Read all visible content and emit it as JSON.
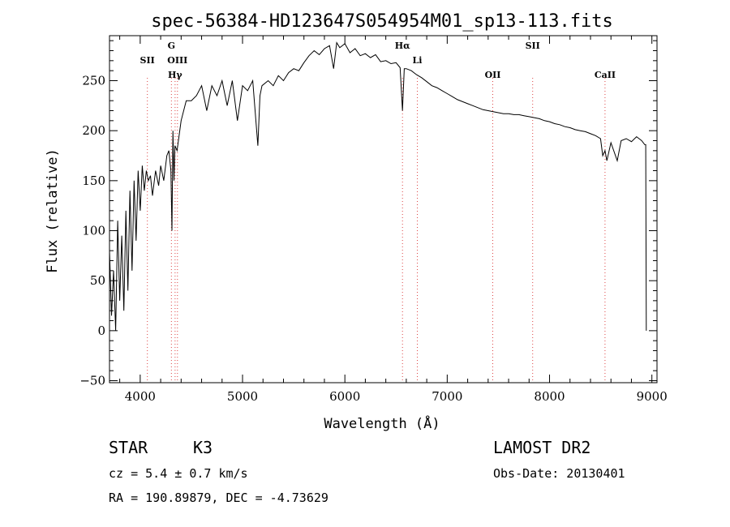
{
  "chart_data": {
    "type": "line",
    "title": "spec-56384-HD123647S054954M01_sp13-113.fits",
    "xlabel": "Wavelength (Å)",
    "ylabel": "Flux (relative)",
    "xlim": [
      3700,
      9050
    ],
    "ylim": [
      -52,
      295
    ],
    "grid": false,
    "xticks": [
      4000,
      5000,
      6000,
      7000,
      8000,
      9000
    ],
    "yticks": [
      -50,
      0,
      50,
      100,
      150,
      200,
      250
    ],
    "series": [
      {
        "x": [
          3700,
          3720,
          3740,
          3760,
          3780,
          3800,
          3820,
          3840,
          3860,
          3880,
          3900,
          3920,
          3940,
          3960,
          3980,
          4000,
          4020,
          4040,
          4060,
          4080,
          4100,
          4120,
          4150,
          4180,
          4200,
          4230,
          4260,
          4280,
          4300,
          4310,
          4320,
          4330,
          4340,
          4360,
          4380,
          4400,
          4450,
          4500,
          4550,
          4600,
          4650,
          4700,
          4750,
          4800,
          4850,
          4900,
          4950,
          5000,
          5050,
          5100,
          5150,
          5170,
          5190,
          5250,
          5300,
          5350,
          5400,
          5450,
          5500,
          5550,
          5600,
          5650,
          5700,
          5750,
          5800,
          5850,
          5890,
          5920,
          5950,
          6000,
          6050,
          6100,
          6150,
          6200,
          6250,
          6300,
          6350,
          6400,
          6450,
          6500,
          6540,
          6563,
          6580,
          6600,
          6650,
          6700,
          6750,
          6800,
          6850,
          6900,
          6950,
          7000,
          7050,
          7100,
          7150,
          7200,
          7250,
          7300,
          7350,
          7400,
          7450,
          7500,
          7550,
          7600,
          7650,
          7700,
          7750,
          7800,
          7850,
          7900,
          7950,
          8000,
          8050,
          8100,
          8150,
          8200,
          8250,
          8300,
          8350,
          8400,
          8450,
          8498,
          8520,
          8542,
          8560,
          8600,
          8662,
          8700,
          8750,
          8800,
          8850,
          8900,
          8930,
          8940,
          8945
        ],
        "y": [
          80,
          15,
          60,
          0,
          110,
          30,
          95,
          20,
          120,
          40,
          140,
          60,
          150,
          90,
          160,
          120,
          165,
          140,
          160,
          150,
          155,
          135,
          160,
          145,
          165,
          150,
          175,
          180,
          160,
          100,
          200,
          150,
          185,
          180,
          195,
          210,
          230,
          230,
          235,
          245,
          220,
          245,
          235,
          250,
          225,
          250,
          210,
          245,
          240,
          250,
          185,
          235,
          245,
          250,
          245,
          255,
          250,
          258,
          262,
          260,
          268,
          275,
          280,
          276,
          282,
          285,
          262,
          288,
          283,
          287,
          278,
          282,
          275,
          277,
          273,
          276,
          269,
          270,
          267,
          268,
          263,
          220,
          262,
          262,
          260,
          256,
          253,
          249,
          245,
          243,
          240,
          237,
          234,
          231,
          229,
          227,
          225,
          223,
          221,
          220,
          219,
          218,
          217,
          217,
          216,
          216,
          215,
          214,
          213,
          212,
          210,
          209,
          207,
          206,
          204,
          203,
          201,
          200,
          199,
          197,
          195,
          192,
          175,
          180,
          170,
          188,
          170,
          190,
          192,
          189,
          194,
          190,
          186,
          186,
          0
        ]
      }
    ],
    "spectral_lines": [
      {
        "name": "SII",
        "x": 4070
      },
      {
        "name": "G",
        "x": 4305
      },
      {
        "name": "OIII",
        "x": 4364
      },
      {
        "name": "Hγ",
        "x": 4341
      },
      {
        "name": "Hα",
        "x": 6563
      },
      {
        "name": "Li",
        "x": 6708
      },
      {
        "name": "OII",
        "x": 7445
      },
      {
        "name": "SII",
        "x": 7835
      },
      {
        "name": "CaII",
        "x": 8542
      }
    ]
  },
  "info": {
    "object_class": "STAR",
    "subclass": "K3",
    "survey": "LAMOST DR2",
    "redshift": "cz = 5.4 ± 0.7 km/s",
    "obs_date": "Obs-Date: 20130401",
    "coords": "RA = 190.89879, DEC =  -4.73629"
  }
}
